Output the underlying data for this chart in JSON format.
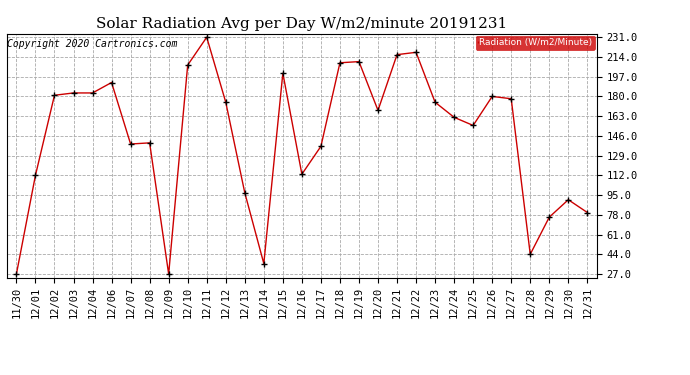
{
  "title": "Solar Radiation Avg per Day W/m2/minute 20191231",
  "copyright": "Copyright 2020 Cartronics.com",
  "legend_label": "Radiation (W/m2/Minute)",
  "legend_bg": "#cc0000",
  "legend_text_color": "#ffffff",
  "x_labels": [
    "11/30",
    "12/01",
    "12/02",
    "12/03",
    "12/04",
    "12/06",
    "12/07",
    "12/08",
    "12/09",
    "12/10",
    "12/11",
    "12/12",
    "12/13",
    "12/14",
    "12/15",
    "12/16",
    "12/17",
    "12/18",
    "12/19",
    "12/20",
    "12/21",
    "12/22",
    "12/23",
    "12/24",
    "12/25",
    "12/26",
    "12/27",
    "12/28",
    "12/29",
    "12/30",
    "12/31"
  ],
  "y_values": [
    27.0,
    112.0,
    181.0,
    183.0,
    183.0,
    192.0,
    139.0,
    140.0,
    27.0,
    207.0,
    231.0,
    175.0,
    97.0,
    36.0,
    200.0,
    113.0,
    137.0,
    209.0,
    210.0,
    168.0,
    216.0,
    218.0,
    175.0,
    162.0,
    155.0,
    180.0,
    178.0,
    44.0,
    76.0,
    91.0,
    80.0
  ],
  "y_min": 27.0,
  "y_max": 231.0,
  "y_ticks": [
    27.0,
    44.0,
    61.0,
    78.0,
    95.0,
    112.0,
    129.0,
    146.0,
    163.0,
    180.0,
    197.0,
    214.0,
    231.0
  ],
  "line_color": "#cc0000",
  "marker_color": "#000000",
  "grid_color": "#aaaaaa",
  "bg_color": "#ffffff",
  "title_fontsize": 11,
  "tick_fontsize": 7.5,
  "copyright_fontsize": 7
}
